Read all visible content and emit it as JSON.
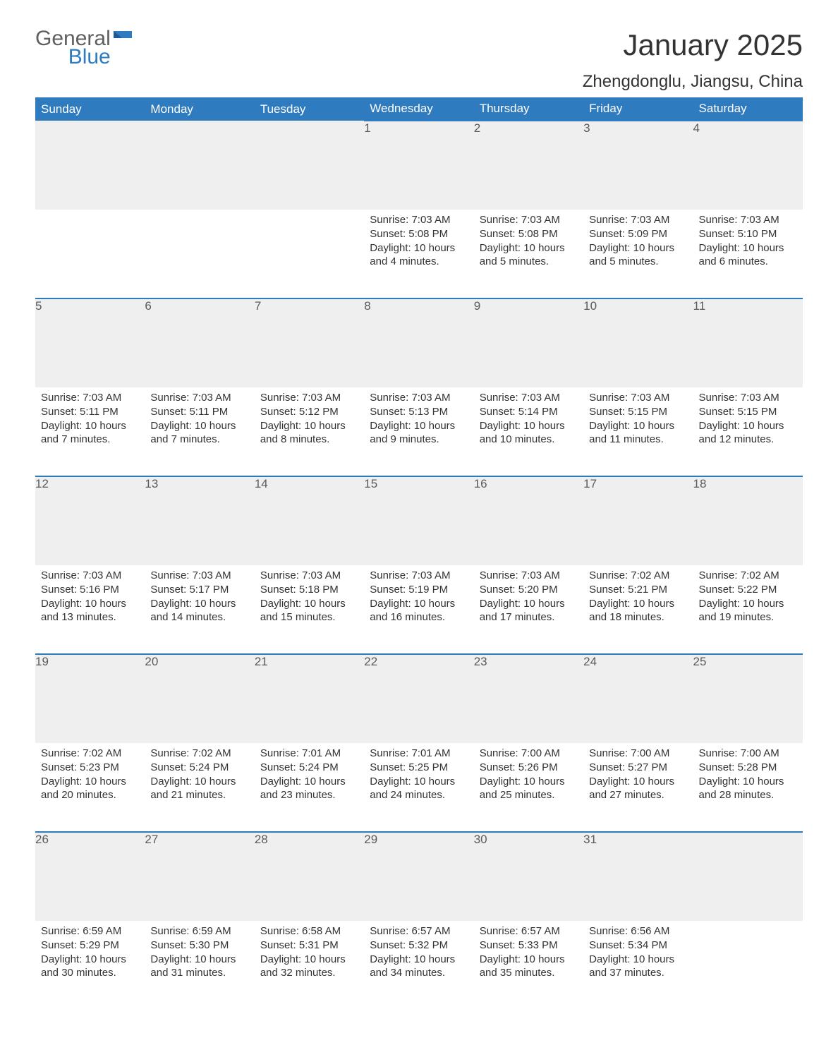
{
  "logo": {
    "word1": "General",
    "word2": "Blue"
  },
  "title": "January 2025",
  "location": "Zhengdonglu, Jiangsu, China",
  "colors": {
    "header_bg": "#2f7bc0",
    "header_text": "#ffffff",
    "daynum_bg": "#efefef",
    "row_border": "#2f7bc0",
    "body_text": "#333333",
    "page_bg": "#ffffff",
    "logo_gray": "#5f5f5f",
    "logo_blue": "#2f7bc0"
  },
  "typography": {
    "title_fontsize": 42,
    "subtitle_fontsize": 24,
    "header_fontsize": 17,
    "daynum_fontsize": 17,
    "cell_fontsize": 15
  },
  "weekdays": [
    "Sunday",
    "Monday",
    "Tuesday",
    "Wednesday",
    "Thursday",
    "Friday",
    "Saturday"
  ],
  "weeks": [
    [
      null,
      null,
      null,
      {
        "d": "1",
        "sr": "Sunrise: 7:03 AM",
        "ss": "Sunset: 5:08 PM",
        "dl1": "Daylight: 10 hours",
        "dl2": "and 4 minutes."
      },
      {
        "d": "2",
        "sr": "Sunrise: 7:03 AM",
        "ss": "Sunset: 5:08 PM",
        "dl1": "Daylight: 10 hours",
        "dl2": "and 5 minutes."
      },
      {
        "d": "3",
        "sr": "Sunrise: 7:03 AM",
        "ss": "Sunset: 5:09 PM",
        "dl1": "Daylight: 10 hours",
        "dl2": "and 5 minutes."
      },
      {
        "d": "4",
        "sr": "Sunrise: 7:03 AM",
        "ss": "Sunset: 5:10 PM",
        "dl1": "Daylight: 10 hours",
        "dl2": "and 6 minutes."
      }
    ],
    [
      {
        "d": "5",
        "sr": "Sunrise: 7:03 AM",
        "ss": "Sunset: 5:11 PM",
        "dl1": "Daylight: 10 hours",
        "dl2": "and 7 minutes."
      },
      {
        "d": "6",
        "sr": "Sunrise: 7:03 AM",
        "ss": "Sunset: 5:11 PM",
        "dl1": "Daylight: 10 hours",
        "dl2": "and 7 minutes."
      },
      {
        "d": "7",
        "sr": "Sunrise: 7:03 AM",
        "ss": "Sunset: 5:12 PM",
        "dl1": "Daylight: 10 hours",
        "dl2": "and 8 minutes."
      },
      {
        "d": "8",
        "sr": "Sunrise: 7:03 AM",
        "ss": "Sunset: 5:13 PM",
        "dl1": "Daylight: 10 hours",
        "dl2": "and 9 minutes."
      },
      {
        "d": "9",
        "sr": "Sunrise: 7:03 AM",
        "ss": "Sunset: 5:14 PM",
        "dl1": "Daylight: 10 hours",
        "dl2": "and 10 minutes."
      },
      {
        "d": "10",
        "sr": "Sunrise: 7:03 AM",
        "ss": "Sunset: 5:15 PM",
        "dl1": "Daylight: 10 hours",
        "dl2": "and 11 minutes."
      },
      {
        "d": "11",
        "sr": "Sunrise: 7:03 AM",
        "ss": "Sunset: 5:15 PM",
        "dl1": "Daylight: 10 hours",
        "dl2": "and 12 minutes."
      }
    ],
    [
      {
        "d": "12",
        "sr": "Sunrise: 7:03 AM",
        "ss": "Sunset: 5:16 PM",
        "dl1": "Daylight: 10 hours",
        "dl2": "and 13 minutes."
      },
      {
        "d": "13",
        "sr": "Sunrise: 7:03 AM",
        "ss": "Sunset: 5:17 PM",
        "dl1": "Daylight: 10 hours",
        "dl2": "and 14 minutes."
      },
      {
        "d": "14",
        "sr": "Sunrise: 7:03 AM",
        "ss": "Sunset: 5:18 PM",
        "dl1": "Daylight: 10 hours",
        "dl2": "and 15 minutes."
      },
      {
        "d": "15",
        "sr": "Sunrise: 7:03 AM",
        "ss": "Sunset: 5:19 PM",
        "dl1": "Daylight: 10 hours",
        "dl2": "and 16 minutes."
      },
      {
        "d": "16",
        "sr": "Sunrise: 7:03 AM",
        "ss": "Sunset: 5:20 PM",
        "dl1": "Daylight: 10 hours",
        "dl2": "and 17 minutes."
      },
      {
        "d": "17",
        "sr": "Sunrise: 7:02 AM",
        "ss": "Sunset: 5:21 PM",
        "dl1": "Daylight: 10 hours",
        "dl2": "and 18 minutes."
      },
      {
        "d": "18",
        "sr": "Sunrise: 7:02 AM",
        "ss": "Sunset: 5:22 PM",
        "dl1": "Daylight: 10 hours",
        "dl2": "and 19 minutes."
      }
    ],
    [
      {
        "d": "19",
        "sr": "Sunrise: 7:02 AM",
        "ss": "Sunset: 5:23 PM",
        "dl1": "Daylight: 10 hours",
        "dl2": "and 20 minutes."
      },
      {
        "d": "20",
        "sr": "Sunrise: 7:02 AM",
        "ss": "Sunset: 5:24 PM",
        "dl1": "Daylight: 10 hours",
        "dl2": "and 21 minutes."
      },
      {
        "d": "21",
        "sr": "Sunrise: 7:01 AM",
        "ss": "Sunset: 5:24 PM",
        "dl1": "Daylight: 10 hours",
        "dl2": "and 23 minutes."
      },
      {
        "d": "22",
        "sr": "Sunrise: 7:01 AM",
        "ss": "Sunset: 5:25 PM",
        "dl1": "Daylight: 10 hours",
        "dl2": "and 24 minutes."
      },
      {
        "d": "23",
        "sr": "Sunrise: 7:00 AM",
        "ss": "Sunset: 5:26 PM",
        "dl1": "Daylight: 10 hours",
        "dl2": "and 25 minutes."
      },
      {
        "d": "24",
        "sr": "Sunrise: 7:00 AM",
        "ss": "Sunset: 5:27 PM",
        "dl1": "Daylight: 10 hours",
        "dl2": "and 27 minutes."
      },
      {
        "d": "25",
        "sr": "Sunrise: 7:00 AM",
        "ss": "Sunset: 5:28 PM",
        "dl1": "Daylight: 10 hours",
        "dl2": "and 28 minutes."
      }
    ],
    [
      {
        "d": "26",
        "sr": "Sunrise: 6:59 AM",
        "ss": "Sunset: 5:29 PM",
        "dl1": "Daylight: 10 hours",
        "dl2": "and 30 minutes."
      },
      {
        "d": "27",
        "sr": "Sunrise: 6:59 AM",
        "ss": "Sunset: 5:30 PM",
        "dl1": "Daylight: 10 hours",
        "dl2": "and 31 minutes."
      },
      {
        "d": "28",
        "sr": "Sunrise: 6:58 AM",
        "ss": "Sunset: 5:31 PM",
        "dl1": "Daylight: 10 hours",
        "dl2": "and 32 minutes."
      },
      {
        "d": "29",
        "sr": "Sunrise: 6:57 AM",
        "ss": "Sunset: 5:32 PM",
        "dl1": "Daylight: 10 hours",
        "dl2": "and 34 minutes."
      },
      {
        "d": "30",
        "sr": "Sunrise: 6:57 AM",
        "ss": "Sunset: 5:33 PM",
        "dl1": "Daylight: 10 hours",
        "dl2": "and 35 minutes."
      },
      {
        "d": "31",
        "sr": "Sunrise: 6:56 AM",
        "ss": "Sunset: 5:34 PM",
        "dl1": "Daylight: 10 hours",
        "dl2": "and 37 minutes."
      },
      null
    ]
  ]
}
